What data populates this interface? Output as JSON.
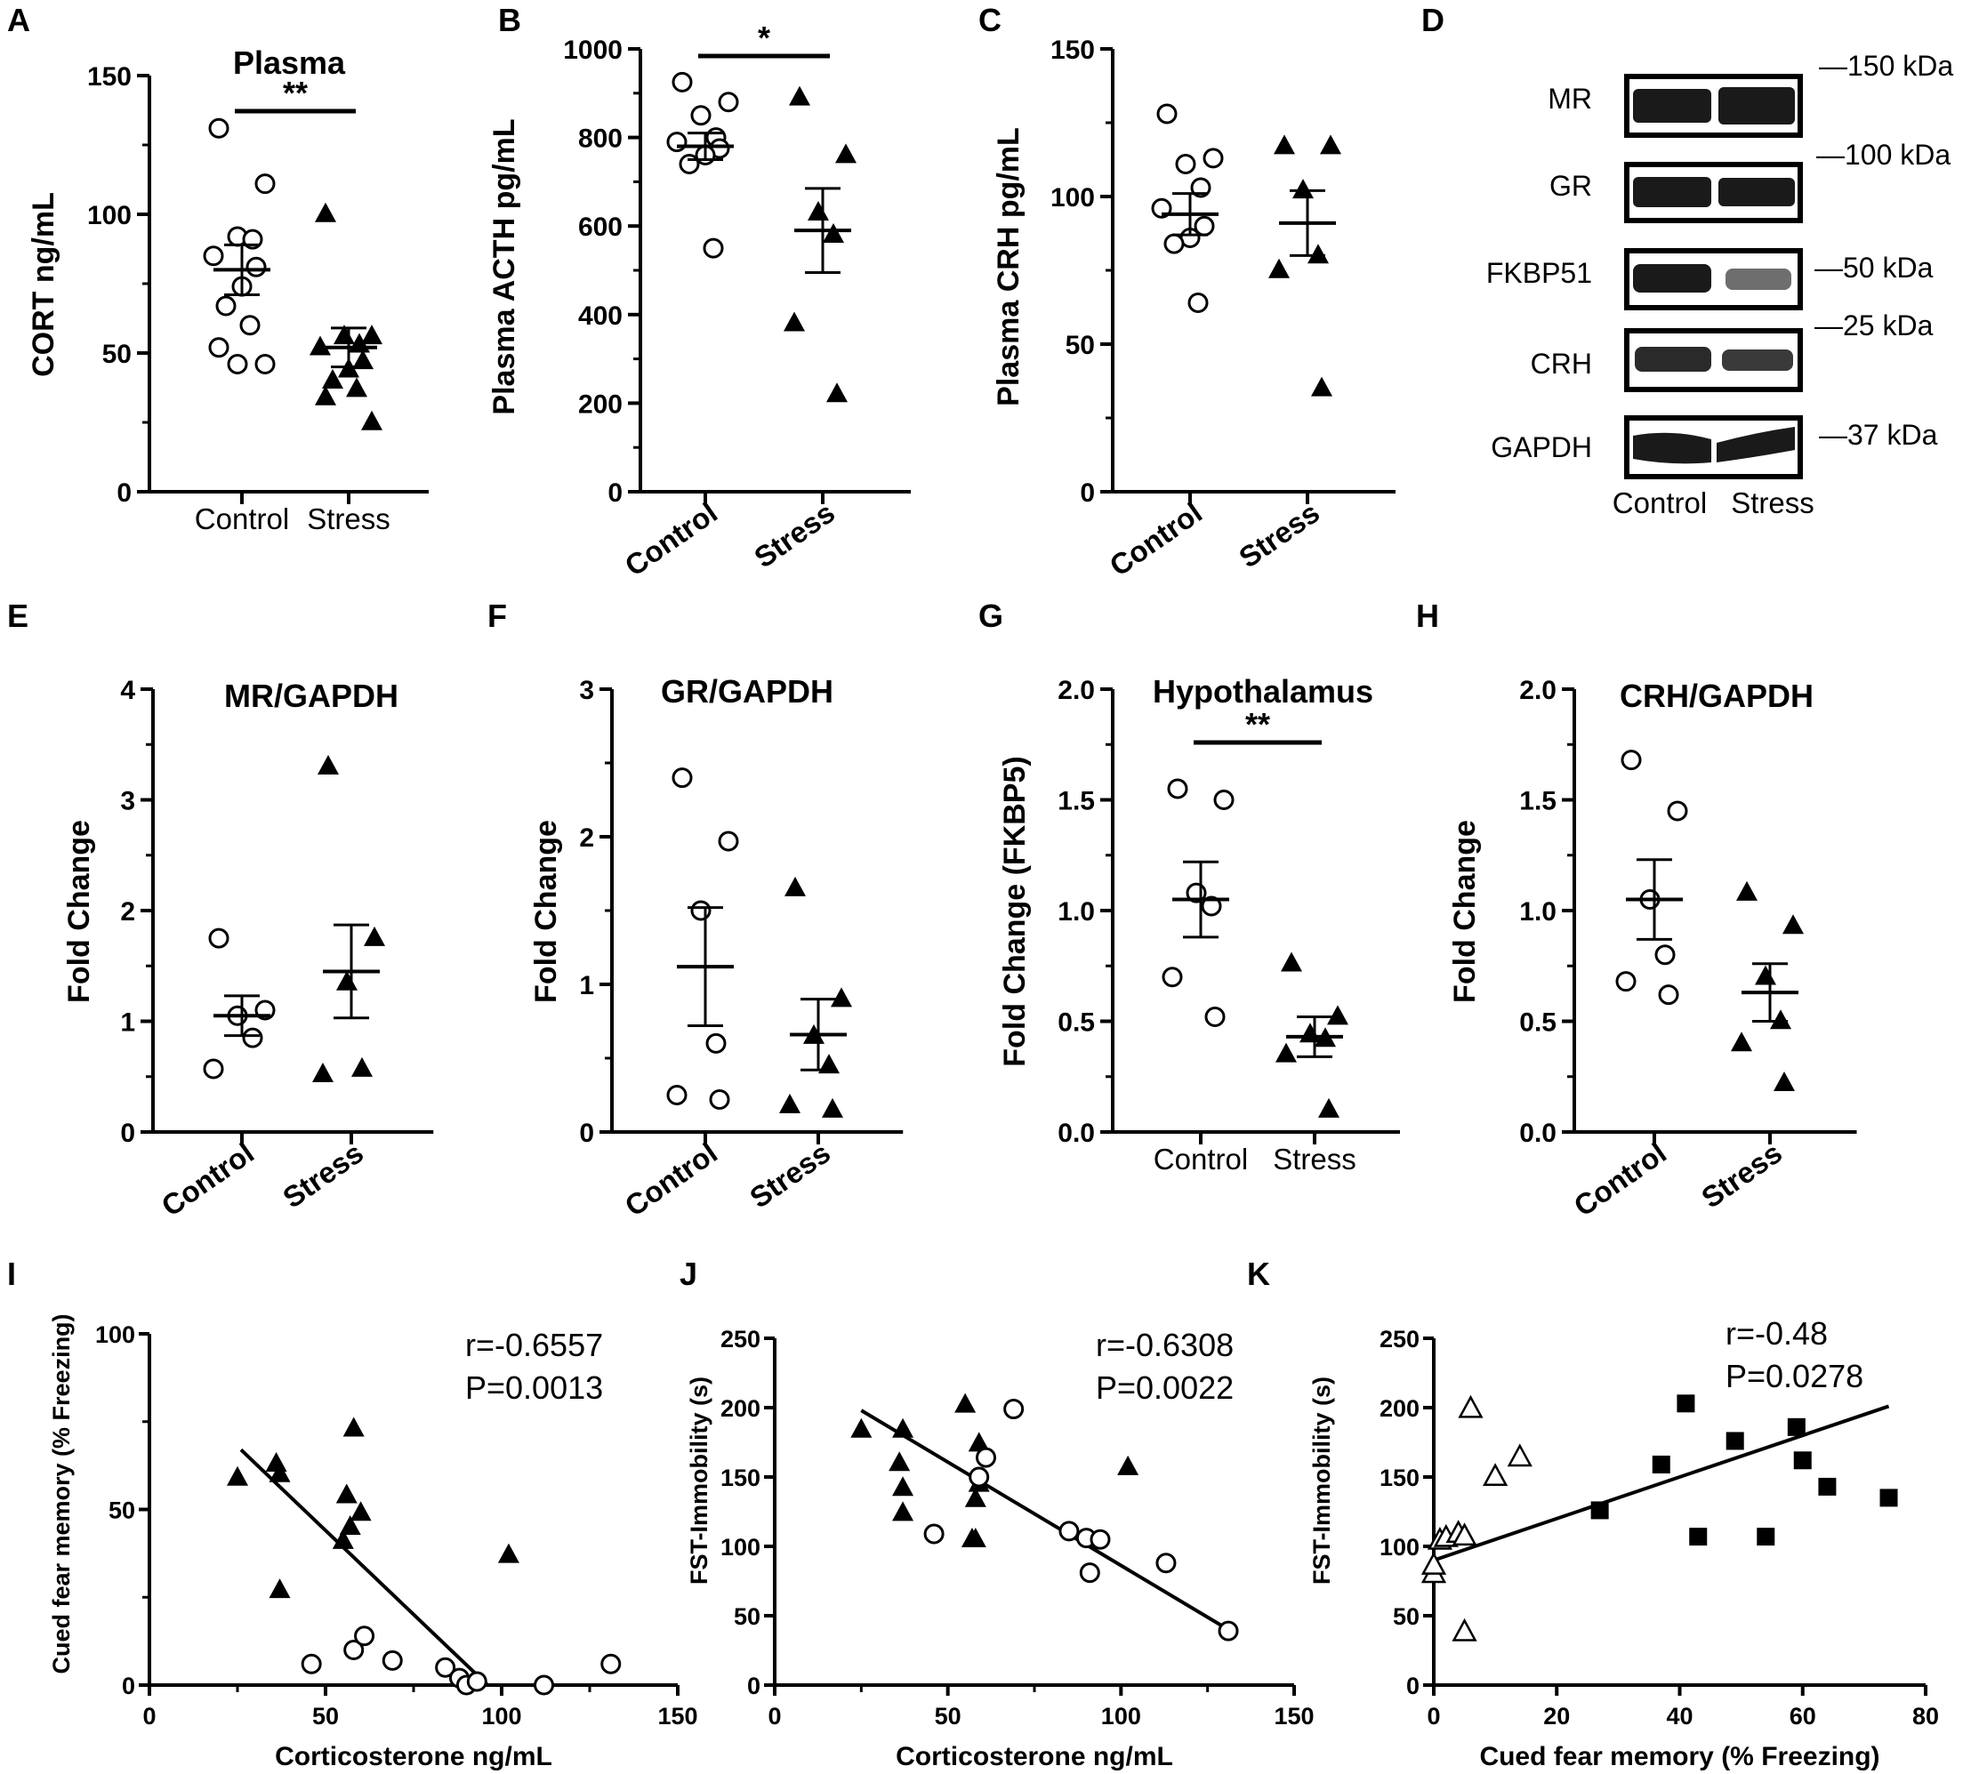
{
  "chart_data": [
    {
      "id": "A",
      "type": "scatter",
      "panel_label": "A",
      "title": "Plasma",
      "ylabel": "CORT ng/mL",
      "ylim": [
        0,
        150
      ],
      "yticks": [
        "0",
        "50",
        "100",
        "150"
      ],
      "categories": [
        "Control",
        "Stress"
      ],
      "sig": "**",
      "groups": [
        {
          "name": "Control",
          "marker": "circle-open",
          "mean": 80,
          "sem": 9,
          "values": [
            131,
            111,
            92,
            91,
            85,
            81,
            74,
            67,
            60,
            52,
            46,
            46
          ]
        },
        {
          "name": "Stress",
          "marker": "triangle-filled",
          "mean": 52,
          "sem": 7,
          "values": [
            100,
            56,
            56,
            53,
            52,
            47,
            44,
            40,
            37,
            34,
            25
          ]
        }
      ]
    },
    {
      "id": "B",
      "type": "scatter",
      "panel_label": "B",
      "title": "",
      "ylabel": "Plasma ACTH pg/mL",
      "ylim": [
        0,
        1000
      ],
      "yticks": [
        "0",
        "200",
        "400",
        "600",
        "800",
        "1000"
      ],
      "categories": [
        "Control",
        "Stress"
      ],
      "sig": "*",
      "groups": [
        {
          "name": "Control",
          "marker": "circle-open",
          "mean": 780,
          "sem": 30,
          "values": [
            925,
            880,
            850,
            800,
            790,
            775,
            760,
            740,
            550
          ]
        },
        {
          "name": "Stress",
          "marker": "triangle-filled",
          "mean": 590,
          "sem": 95,
          "values": [
            890,
            760,
            630,
            580,
            380,
            220
          ]
        }
      ]
    },
    {
      "id": "C",
      "type": "scatter",
      "panel_label": "C",
      "title": "",
      "ylabel": "Plasma CRH pg/mL",
      "ylim": [
        0,
        150
      ],
      "yticks": [
        "0",
        "50",
        "100",
        "150"
      ],
      "categories": [
        "Control",
        "Stress"
      ],
      "sig": "",
      "groups": [
        {
          "name": "Control",
          "marker": "circle-open",
          "mean": 94,
          "sem": 7,
          "values": [
            128,
            113,
            111,
            103,
            96,
            90,
            86,
            84,
            64
          ]
        },
        {
          "name": "Stress",
          "marker": "triangle-filled",
          "mean": 91,
          "sem": 11,
          "values": [
            117,
            117,
            102,
            80,
            75,
            35
          ]
        }
      ]
    },
    {
      "id": "E",
      "type": "scatter",
      "panel_label": "E",
      "title": "MR/GAPDH",
      "ylabel": "Fold Change",
      "ylim": [
        0,
        4
      ],
      "yticks": [
        "0",
        "1",
        "2",
        "3",
        "4"
      ],
      "categories": [
        "Control",
        "Stress"
      ],
      "sig": "",
      "groups": [
        {
          "name": "Control",
          "marker": "circle-open",
          "mean": 1.05,
          "sem": 0.18,
          "values": [
            1.75,
            1.1,
            1.05,
            0.85,
            0.57
          ]
        },
        {
          "name": "Stress",
          "marker": "triangle-filled",
          "mean": 1.45,
          "sem": 0.42,
          "values": [
            3.3,
            1.75,
            1.35,
            0.57,
            0.52
          ]
        }
      ]
    },
    {
      "id": "F",
      "type": "scatter",
      "panel_label": "F",
      "title": "GR/GAPDH",
      "ylabel": "Fold Change",
      "ylim": [
        0,
        3
      ],
      "yticks": [
        "0",
        "1",
        "2",
        "3"
      ],
      "categories": [
        "Control",
        "Stress"
      ],
      "sig": "",
      "groups": [
        {
          "name": "Control",
          "marker": "circle-open",
          "mean": 1.12,
          "sem": 0.4,
          "values": [
            2.4,
            1.97,
            1.5,
            0.6,
            0.25,
            0.22
          ]
        },
        {
          "name": "Stress",
          "marker": "triangle-filled",
          "mean": 0.66,
          "sem": 0.24,
          "values": [
            1.65,
            0.9,
            0.65,
            0.45,
            0.18,
            0.15
          ]
        }
      ]
    },
    {
      "id": "G",
      "type": "scatter",
      "panel_label": "G",
      "title": "Hypothalamus",
      "ylabel": "Fold Change (FKBP5)",
      "ylim": [
        0,
        2
      ],
      "yticks": [
        "0.0",
        "0.5",
        "1.0",
        "1.5",
        "2.0"
      ],
      "categories": [
        "Control",
        "Stress"
      ],
      "sig": "**",
      "groups": [
        {
          "name": "Control",
          "marker": "circle-open",
          "mean": 1.05,
          "sem": 0.17,
          "values": [
            1.55,
            1.5,
            1.08,
            1.02,
            0.7,
            0.52
          ]
        },
        {
          "name": "Stress",
          "marker": "triangle-filled",
          "mean": 0.43,
          "sem": 0.09,
          "values": [
            0.76,
            0.52,
            0.44,
            0.42,
            0.35,
            0.1
          ]
        }
      ]
    },
    {
      "id": "H",
      "type": "scatter",
      "panel_label": "H",
      "title": "CRH/GAPDH",
      "ylabel": "Fold Change",
      "ylim": [
        0,
        2
      ],
      "yticks": [
        "0.0",
        "0.5",
        "1.0",
        "1.5",
        "2.0"
      ],
      "categories": [
        "Control",
        "Stress"
      ],
      "sig": "",
      "groups": [
        {
          "name": "Control",
          "marker": "circle-open",
          "mean": 1.05,
          "sem": 0.18,
          "values": [
            1.68,
            1.45,
            1.05,
            0.8,
            0.68,
            0.62
          ]
        },
        {
          "name": "Stress",
          "marker": "triangle-filled",
          "mean": 0.63,
          "sem": 0.13,
          "values": [
            1.08,
            0.93,
            0.7,
            0.5,
            0.4,
            0.22
          ]
        }
      ]
    },
    {
      "id": "I",
      "type": "scatter-regression",
      "panel_label": "I",
      "xlabel": "Corticosterone ng/mL",
      "ylabel": "Cued fear memory (% Freezing)",
      "xlim": [
        0,
        150
      ],
      "ylim": [
        0,
        100
      ],
      "xticks": [
        "0",
        "50",
        "100",
        "150"
      ],
      "yticks": [
        "0",
        "50",
        "100"
      ],
      "stats": [
        "r=-0.6557",
        "P=0.0013"
      ],
      "fit": {
        "x": [
          26,
          96
        ],
        "y": [
          67,
          0
        ]
      },
      "series": [
        {
          "name": "Stress",
          "marker": "triangle-filled",
          "points": [
            [
              25,
              59
            ],
            [
              36,
              63
            ],
            [
              37,
              60
            ],
            [
              37,
              27
            ],
            [
              55,
              41
            ],
            [
              56,
              54
            ],
            [
              57,
              45
            ],
            [
              58,
              73
            ],
            [
              60,
              49
            ],
            [
              102,
              37
            ]
          ]
        },
        {
          "name": "Control",
          "marker": "circle-open",
          "points": [
            [
              46,
              6
            ],
            [
              58,
              10
            ],
            [
              61,
              14
            ],
            [
              69,
              7
            ],
            [
              84,
              5
            ],
            [
              88,
              2
            ],
            [
              90,
              0
            ],
            [
              93,
              1
            ],
            [
              112,
              0
            ],
            [
              131,
              6
            ]
          ]
        }
      ]
    },
    {
      "id": "J",
      "type": "scatter-regression",
      "panel_label": "J",
      "xlabel": "Corticosterone ng/mL",
      "ylabel": "FST-Immobility (s)",
      "xlim": [
        0,
        150
      ],
      "ylim": [
        0,
        250
      ],
      "xticks": [
        "0",
        "50",
        "100",
        "150"
      ],
      "yticks": [
        "0",
        "50",
        "100",
        "150",
        "200",
        "250"
      ],
      "stats": [
        "r=-0.6308",
        "P=0.0022"
      ],
      "fit": {
        "x": [
          25,
          131
        ],
        "y": [
          198,
          40
        ]
      },
      "series": [
        {
          "name": "Stress",
          "marker": "triangle-filled",
          "points": [
            [
              25,
              184
            ],
            [
              37,
              184
            ],
            [
              36,
              160
            ],
            [
              37,
              142
            ],
            [
              37,
              124
            ],
            [
              55,
              202
            ],
            [
              57,
              105
            ],
            [
              58,
              134
            ],
            [
              58,
              105
            ],
            [
              59,
              145
            ],
            [
              59,
              174
            ],
            [
              102,
              157
            ]
          ]
        },
        {
          "name": "Control",
          "marker": "circle-open",
          "points": [
            [
              46,
              109
            ],
            [
              59,
              150
            ],
            [
              61,
              164
            ],
            [
              69,
              199
            ],
            [
              85,
              111
            ],
            [
              90,
              106
            ],
            [
              91,
              81
            ],
            [
              94,
              105
            ],
            [
              113,
              88
            ],
            [
              131,
              39
            ]
          ]
        }
      ]
    },
    {
      "id": "K",
      "type": "scatter-regression",
      "panel_label": "K",
      "xlabel": "Cued fear memory (% Freezing)",
      "ylabel": "FST-Immobility (s)",
      "xlim": [
        0,
        80
      ],
      "ylim": [
        0,
        250
      ],
      "xticks": [
        "0",
        "20",
        "40",
        "60",
        "80"
      ],
      "yticks": [
        "0",
        "50",
        "100",
        "150",
        "200",
        "250"
      ],
      "stats": [
        "r=-0.48",
        "P=0.0278"
      ],
      "fit": {
        "x": [
          0,
          74
        ],
        "y": [
          90,
          201
        ]
      },
      "series": [
        {
          "name": "Control",
          "marker": "triangle-open",
          "points": [
            [
              0,
              80
            ],
            [
              0,
              86
            ],
            [
              1,
              104
            ],
            [
              2,
              106
            ],
            [
              4,
              109
            ],
            [
              5,
              107
            ],
            [
              5,
              38
            ],
            [
              6,
              199
            ],
            [
              10,
              150
            ],
            [
              14,
              164
            ]
          ]
        },
        {
          "name": "Stress",
          "marker": "square-filled",
          "points": [
            [
              27,
              126
            ],
            [
              37,
              159
            ],
            [
              41,
              203
            ],
            [
              43,
              107
            ],
            [
              49,
              176
            ],
            [
              54,
              107
            ],
            [
              59,
              186
            ],
            [
              60,
              162
            ],
            [
              64,
              143
            ],
            [
              74,
              135
            ]
          ]
        }
      ]
    }
  ],
  "blot": {
    "panel_label": "D",
    "rows": [
      {
        "name": "MR",
        "kda": "—150 kDa"
      },
      {
        "name": "GR",
        "kda": "—100 kDa"
      },
      {
        "name": "FKBP51",
        "kda": "—50  kDa"
      },
      {
        "name": "CRH",
        "kda": "—25 kDa"
      },
      {
        "name": "GAPDH",
        "kda": "—37 kDa"
      }
    ],
    "lanes": [
      "Control",
      "Stress"
    ]
  },
  "colors": {
    "ink": "#000000",
    "background": "#ffffff",
    "blot_band": "#1a1a1a"
  }
}
